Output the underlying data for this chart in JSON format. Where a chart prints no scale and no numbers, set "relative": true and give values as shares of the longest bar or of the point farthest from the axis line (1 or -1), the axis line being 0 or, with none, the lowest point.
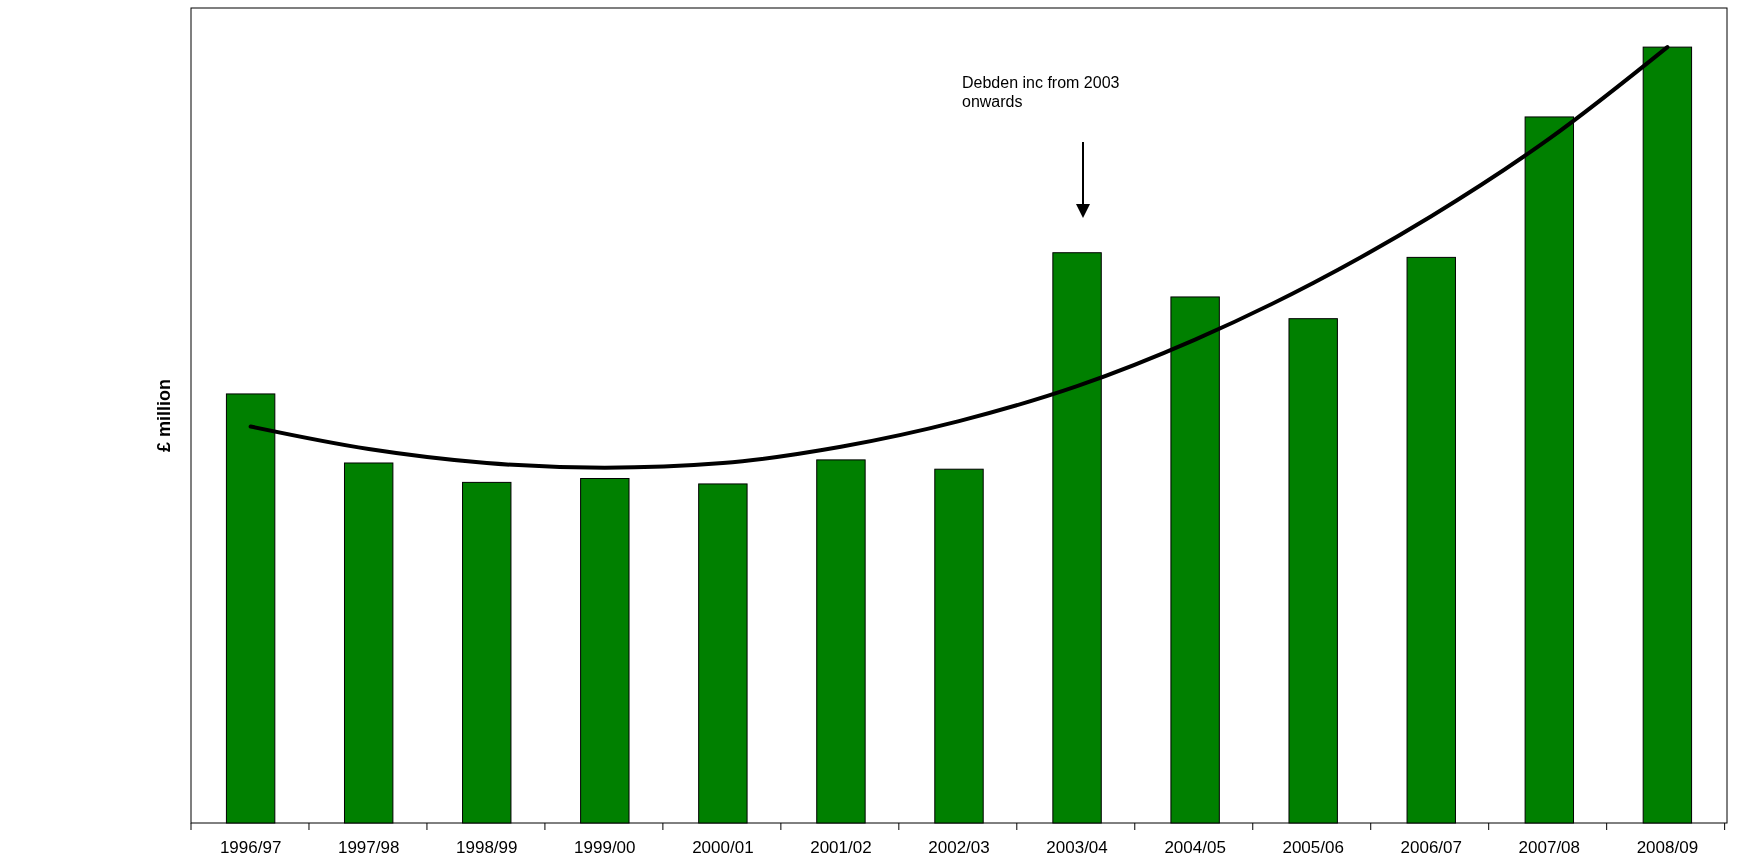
{
  "chart_data": {
    "type": "bar",
    "ylabel": "£ million",
    "relative": true,
    "categories": [
      "1996/97",
      "1997/98",
      "1998/99",
      "1999/00",
      "2000/01",
      "2001/02",
      "2002/03",
      "2003/04",
      "2004/05",
      "2005/06",
      "2006/07",
      "2007/08",
      "2008/09"
    ],
    "series": [
      {
        "color": "#008000",
        "values": [
          0.553,
          0.464,
          0.439,
          0.444,
          0.437,
          0.468,
          0.456,
          0.735,
          0.678,
          0.65,
          0.729,
          0.91,
          1.0
        ]
      },
      {
        "type": "line",
        "color": "#000000",
        "x": [
          "1996/97",
          "1997/98",
          "1998/99",
          "1999/00",
          "2000/01",
          "2001/02",
          "2002/03",
          "2003/04",
          "2004/05",
          "2005/06",
          "2006/07",
          "2007/08",
          "2008/09"
        ],
        "values": [
          0.511,
          0.482,
          0.464,
          0.458,
          0.464,
          0.485,
          0.518,
          0.563,
          0.623,
          0.696,
          0.782,
          0.882,
          1.0
        ]
      }
    ],
    "annotations": [
      "Debden inc from 2003 onwards"
    ]
  }
}
